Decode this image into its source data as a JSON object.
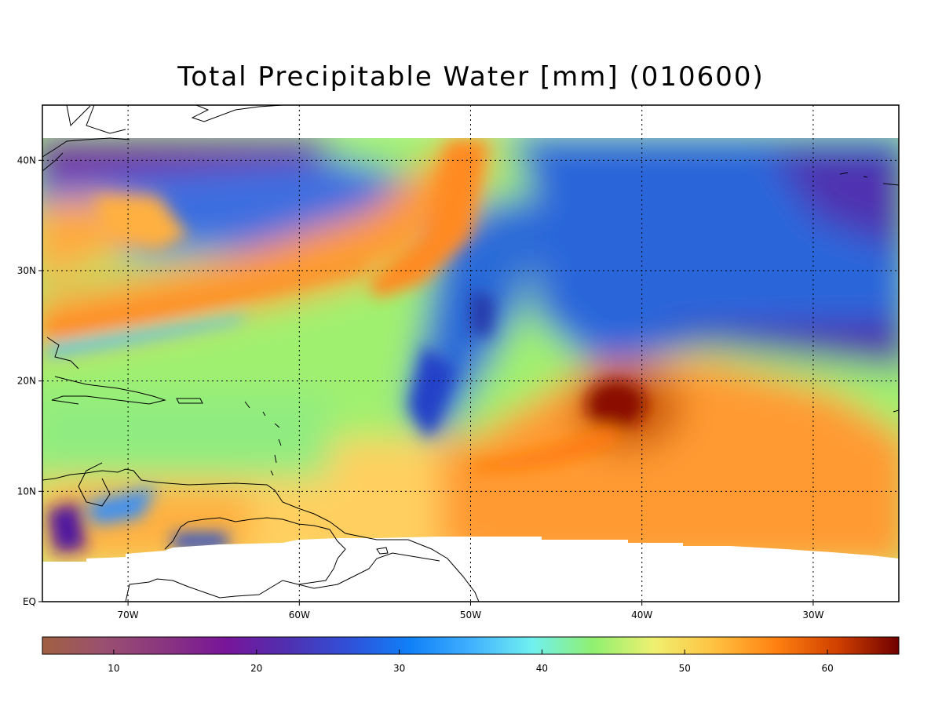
{
  "title": "Total Precipitable Water [mm]  (010600)",
  "map": {
    "lon_range": [
      -75,
      -25
    ],
    "lat_range": [
      0,
      45
    ],
    "data_lat_range": [
      4,
      42
    ],
    "lat_ticks": [
      {
        "value": 40,
        "label": "40N"
      },
      {
        "value": 30,
        "label": "30N"
      },
      {
        "value": 20,
        "label": "20N"
      },
      {
        "value": 10,
        "label": "10N"
      },
      {
        "value": 0,
        "label": "EQ"
      }
    ],
    "lon_ticks": [
      {
        "value": -70,
        "label": "70W"
      },
      {
        "value": -60,
        "label": "60W"
      },
      {
        "value": -50,
        "label": "50W"
      },
      {
        "value": -40,
        "label": "40W"
      },
      {
        "value": -30,
        "label": "30W"
      }
    ]
  },
  "colorbar": {
    "min": 5,
    "max": 65,
    "ticks": [
      {
        "value": 10,
        "label": "10"
      },
      {
        "value": 20,
        "label": "20"
      },
      {
        "value": 30,
        "label": "30"
      },
      {
        "value": 40,
        "label": "40"
      },
      {
        "value": 50,
        "label": "50"
      },
      {
        "value": 60,
        "label": "60"
      }
    ],
    "colors": [
      "#a06040",
      "#9a5070",
      "#8a3580",
      "#78159a",
      "#5030b0",
      "#3050d8",
      "#1080f8",
      "#40b0ff",
      "#70f0f0",
      "#90f070",
      "#f0f070",
      "#ffc040",
      "#ff8010",
      "#d04000",
      "#700000"
    ]
  }
}
